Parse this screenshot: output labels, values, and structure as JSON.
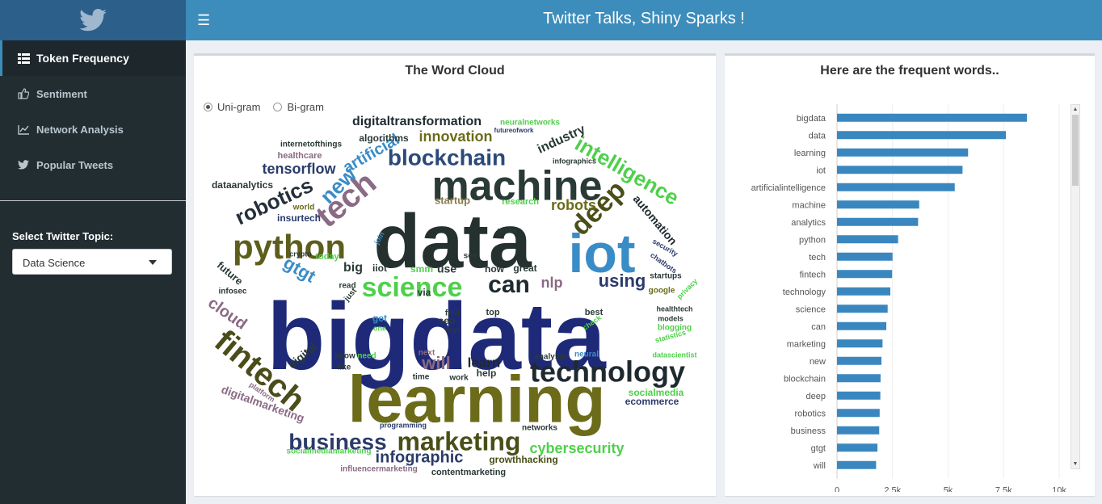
{
  "header": {
    "title": "Twitter Talks, Shiny Sparks !",
    "logo_icon": "twitter-bird-icon",
    "menu_icon": "hamburger-icon"
  },
  "sidebar": {
    "items": [
      {
        "label": "Token Frequency",
        "icon": "table-icon",
        "active": true
      },
      {
        "label": "Sentiment",
        "icon": "thumbs-up-icon",
        "active": false
      },
      {
        "label": "Network Analysis",
        "icon": "line-chart-icon",
        "active": false
      },
      {
        "label": "Popular Tweets",
        "icon": "twitter-icon",
        "active": false
      }
    ],
    "topic_label": "Select Twitter Topic:",
    "topic_value": "Data Science"
  },
  "wordcloud": {
    "title": "The Word Cloud",
    "options": [
      {
        "label": "Uni-gram",
        "selected": true
      },
      {
        "label": "Bi-gram",
        "selected": false
      }
    ],
    "words": [
      "bigdata",
      "data",
      "learning",
      "iot",
      "machine",
      "technology",
      "fintech",
      "python",
      "science",
      "marketing",
      "business",
      "blockchain",
      "tech",
      "robotics",
      "deep",
      "intelligence",
      "can",
      "infographic",
      "using",
      "new",
      "cybersecurity",
      "digitaltransformation",
      "innovation",
      "artificial",
      "tensorflow",
      "robots",
      "industry",
      "automation",
      "gtgt",
      "cloud",
      "will",
      "nlp",
      "digitalmarketing",
      "future",
      "socialmedia",
      "learn",
      "dataanalytics",
      "startup",
      "ecommerce",
      "growthhacking",
      "contentmarketing",
      "influencermarketing",
      "socialmediamarketing",
      "programming",
      "big",
      "iiot",
      "smm",
      "use",
      "now",
      "great",
      "digital",
      "algorithms",
      "healthcare",
      "internetofthings",
      "insurtech",
      "world",
      "research",
      "make",
      "join",
      "crypto",
      "today",
      "read",
      "just",
      "infosec",
      "via",
      "get",
      "one",
      "find",
      "first",
      "seo",
      "top",
      "best",
      "check",
      "models",
      "blogging",
      "statistics",
      "startups",
      "google",
      "privacy",
      "security",
      "chatbots",
      "healthtech",
      "datascientist",
      "neuralnetworks",
      "futureofwork",
      "infographics",
      "know",
      "need",
      "like",
      "next",
      "time",
      "work",
      "help",
      "analysis",
      "neural",
      "networks",
      "platform",
      "see"
    ]
  },
  "chart_data": {
    "title": "Here are the frequent words..",
    "type": "bar",
    "orientation": "horizontal",
    "color": "#3a87c0",
    "categories": [
      "bigdata",
      "data",
      "learning",
      "iot",
      "artificialintelligence",
      "machine",
      "analytics",
      "python",
      "tech",
      "fintech",
      "technology",
      "science",
      "can",
      "marketing",
      "new",
      "blockchain",
      "deep",
      "robotics",
      "business",
      "gtgt",
      "will"
    ],
    "values": [
      8550,
      7600,
      5900,
      5650,
      5300,
      3700,
      3650,
      2750,
      2500,
      2480,
      2400,
      2280,
      2220,
      2050,
      2000,
      1960,
      1950,
      1920,
      1900,
      1820,
      1760
    ],
    "xlim": [
      0,
      10000
    ],
    "xticks": [
      0,
      2500,
      5000,
      7500,
      10000
    ],
    "xtick_labels": [
      "0",
      "2.5k",
      "5k",
      "7.5k",
      "10k"
    ],
    "grid": true
  }
}
